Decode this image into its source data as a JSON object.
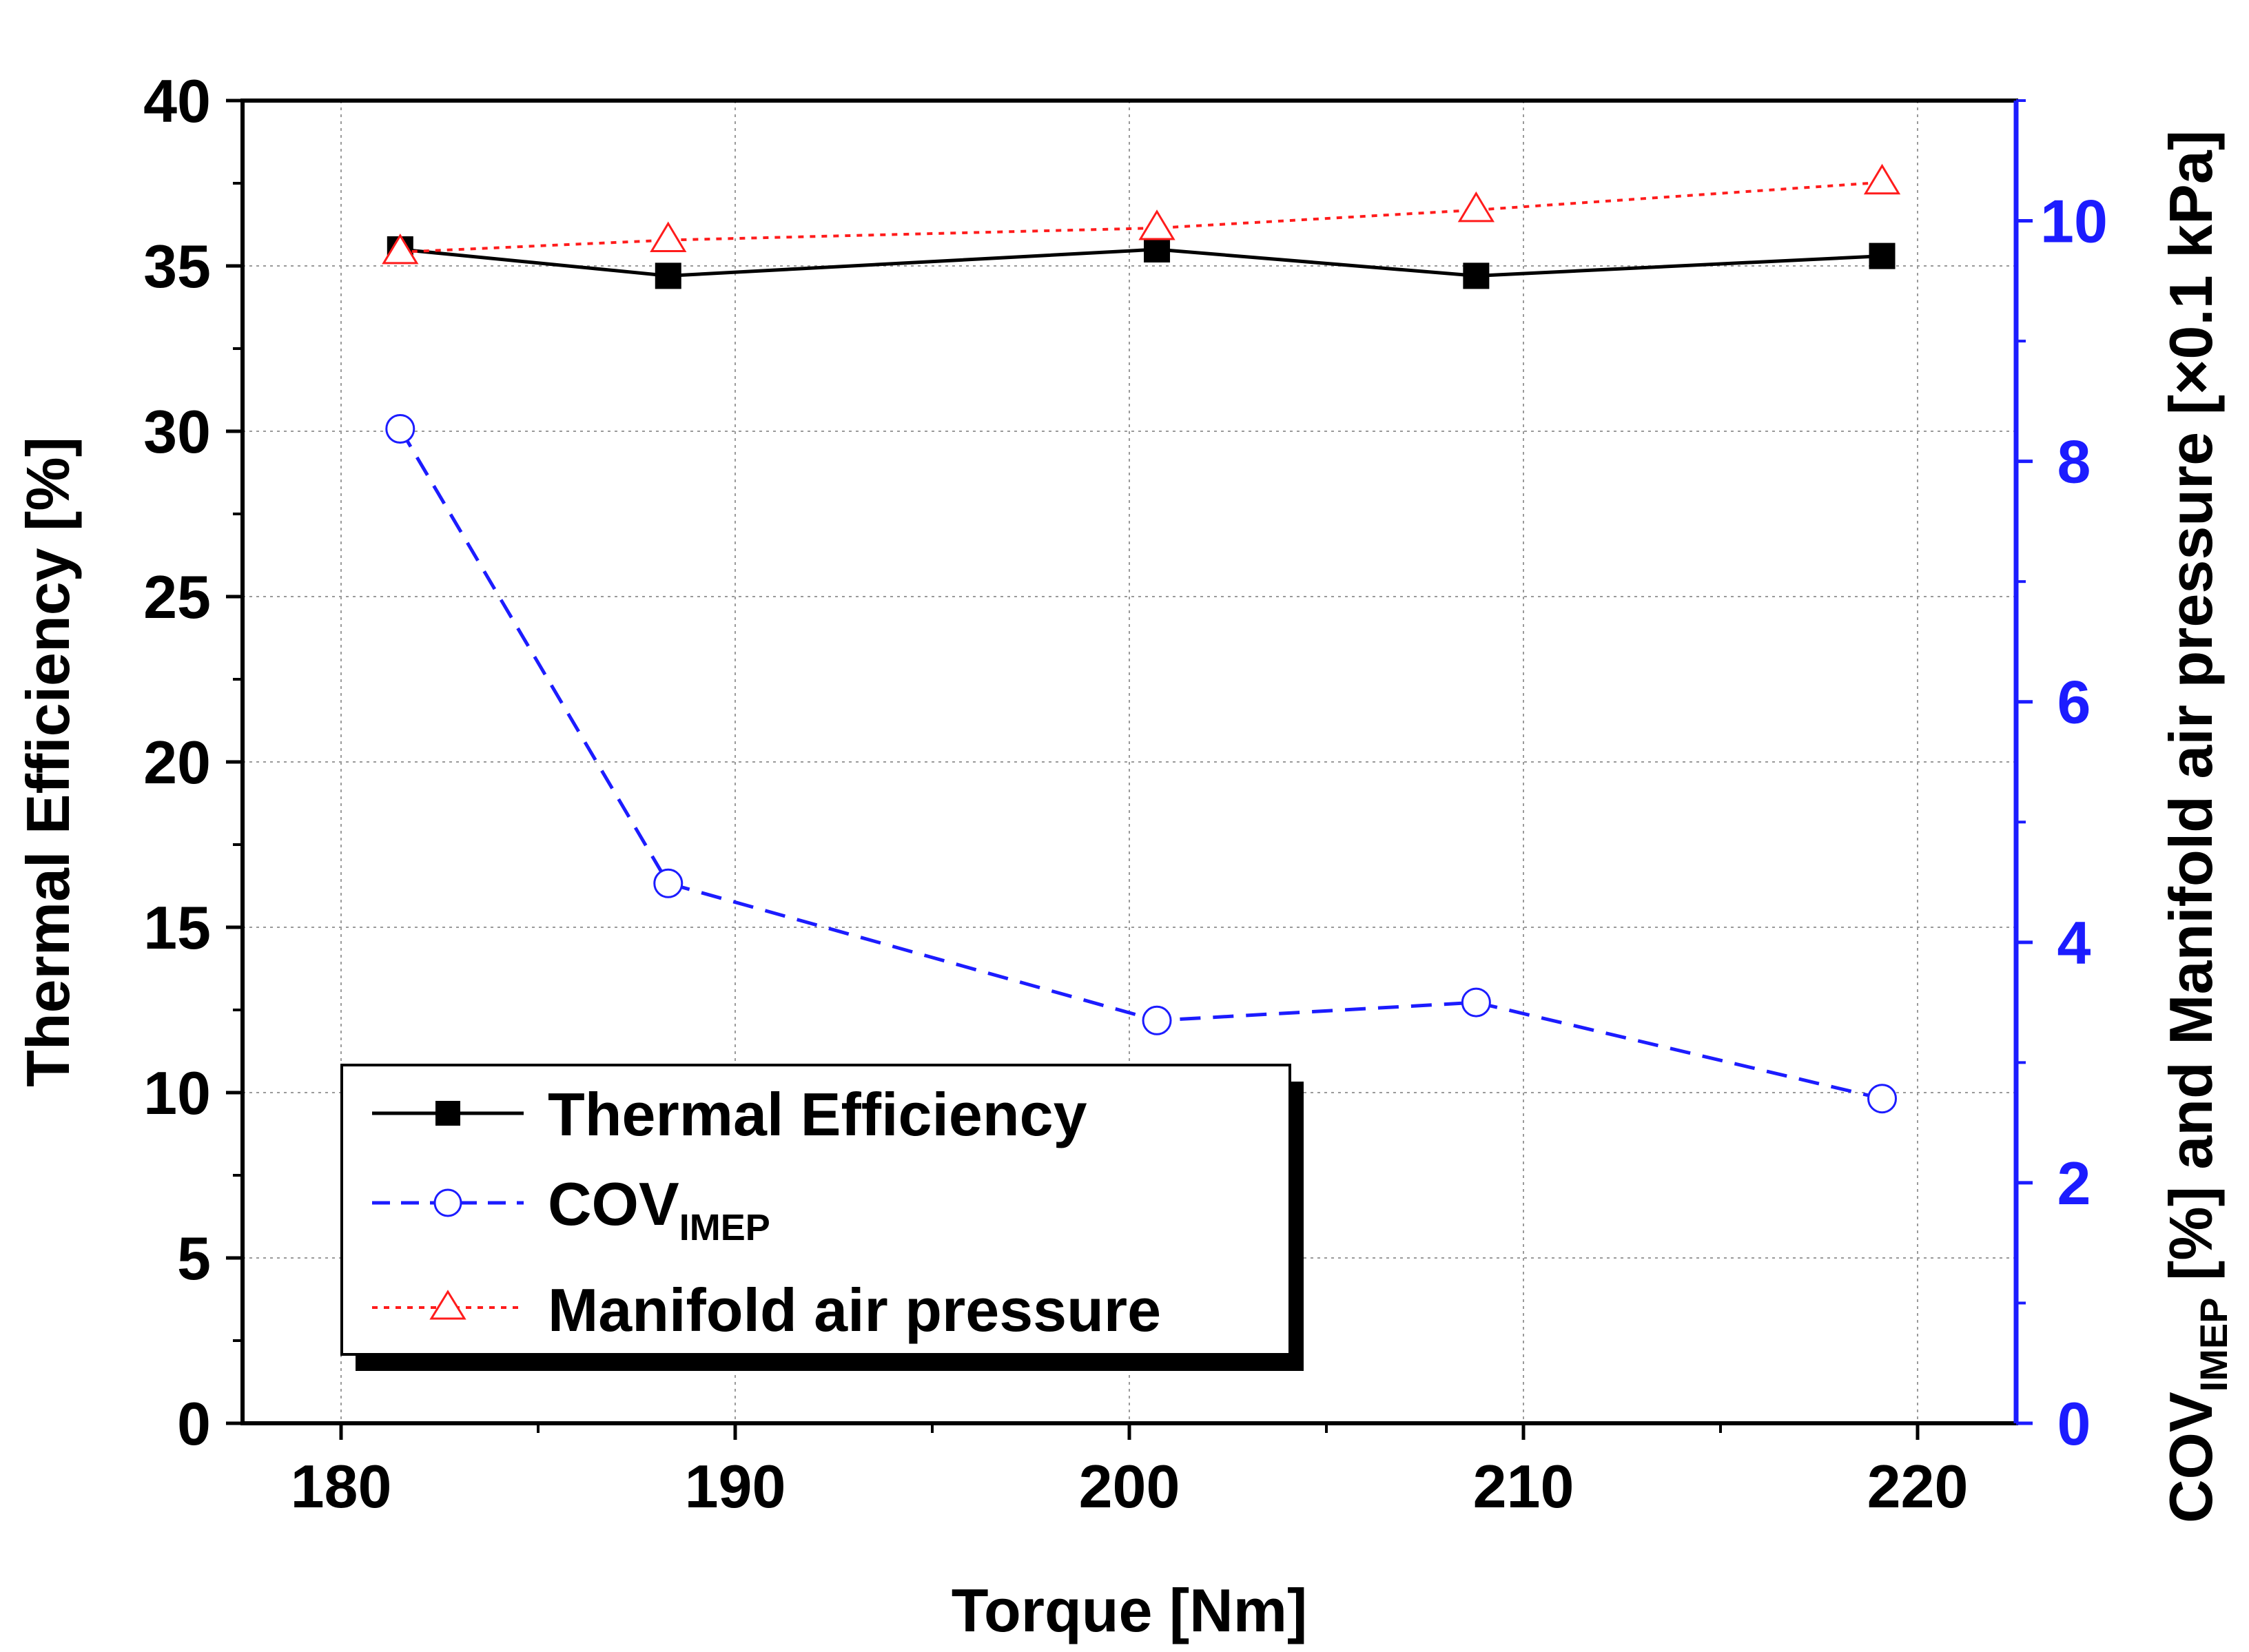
{
  "chart_data": {
    "type": "line",
    "title": "",
    "xlabel": "Torque [Nm]",
    "ylabel": "Thermal Efficiency [%]",
    "y2label": {
      "prefix": "COV",
      "subscript": "IMEP",
      "suffix": " [%] and Manifold air pressure [×0.1 kPa]"
    },
    "xlim": [
      177.5,
      222.5
    ],
    "ylim": [
      0,
      40
    ],
    "y2lim": [
      0,
      11
    ],
    "xticks": [
      "180",
      "190",
      "200",
      "210",
      "220"
    ],
    "yticks": [
      "0",
      "5",
      "10",
      "15",
      "20",
      "25",
      "30",
      "35",
      "40"
    ],
    "y2ticks": [
      "0",
      "2",
      "4",
      "6",
      "8",
      "10"
    ],
    "grid": true,
    "legend_position": "bottom-left",
    "series": [
      {
        "name": "Thermal Efficiency",
        "axis": "left",
        "color": "#000000",
        "marker": "filled-square",
        "line": "solid",
        "x": [
          181.5,
          188.3,
          200.7,
          208.8,
          219.1
        ],
        "values": [
          35.5,
          34.7,
          35.5,
          34.7,
          35.3
        ]
      },
      {
        "name": "COV",
        "name_sub": "IMEP",
        "axis": "right",
        "color": "#1c1cff",
        "marker": "open-circle",
        "line": "dashed",
        "x": [
          181.5,
          188.3,
          200.7,
          208.8,
          219.1
        ],
        "values": [
          8.27,
          4.49,
          3.35,
          3.5,
          2.7
        ]
      },
      {
        "name": "Manifold air pressure",
        "axis": "right",
        "color": "#ff1c1c",
        "marker": "open-triangle",
        "line": "dotted",
        "x": [
          181.5,
          188.3,
          200.7,
          208.8,
          219.1
        ],
        "values": [
          9.74,
          9.84,
          9.94,
          10.09,
          10.32
        ]
      }
    ]
  },
  "colors": {
    "axis": "#000000",
    "right_axis": "#1c1cff",
    "grid": "#9a9a9a"
  }
}
